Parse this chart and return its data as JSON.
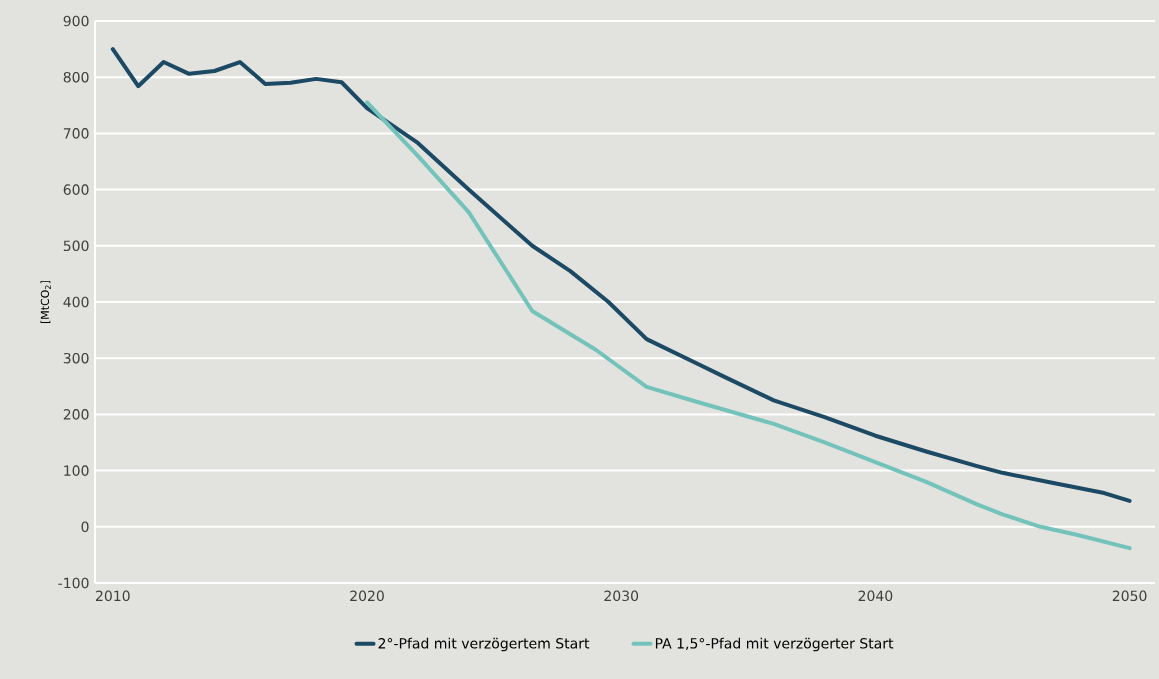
{
  "chart_data": {
    "type": "line",
    "ylabel": "[MtCO$_{2}$]",
    "xlim": [
      2009.3,
      2051
    ],
    "ylim": [
      -100,
      900
    ],
    "xticks": [
      2010,
      2020,
      2030,
      2040,
      2050
    ],
    "yticks": [
      -100,
      0,
      100,
      200,
      300,
      400,
      500,
      600,
      700,
      800,
      900
    ],
    "grid": "y",
    "legend": "bottom",
    "line_style": "solid",
    "marker": "none",
    "series": [
      {
        "name": "2°-Pfad mit verzögertem Start",
        "color": "#1c4964",
        "x": [
          2010,
          2011,
          2012,
          2013,
          2014,
          2015,
          2016,
          2017,
          2018,
          2019,
          2020,
          2022,
          2024,
          2026.5,
          2028,
          2029.5,
          2031,
          2033,
          2034,
          2036,
          2038,
          2040,
          2042,
          2044,
          2045,
          2047,
          2049,
          2050
        ],
        "values": [
          850,
          784,
          827,
          806,
          811,
          827,
          788,
          790,
          797,
          791,
          745,
          683,
          600,
          500,
          455,
          400,
          334,
          290,
          268,
          225,
          195,
          162,
          134,
          108,
          96,
          78,
          60,
          46
        ]
      },
      {
        "name": "PA 1,5°-Pfad mit verzögerter Start",
        "color": "#74c3bb",
        "x": [
          2020,
          2022,
          2024,
          2026.5,
          2029,
          2031,
          2033,
          2036,
          2038,
          2040,
          2042,
          2043,
          2044,
          2045,
          2046.5,
          2048,
          2050
        ],
        "values": [
          755,
          660,
          560,
          384,
          315,
          249,
          222,
          183,
          150,
          115,
          80,
          60,
          40,
          22,
          0,
          -15,
          -38
        ]
      }
    ]
  }
}
